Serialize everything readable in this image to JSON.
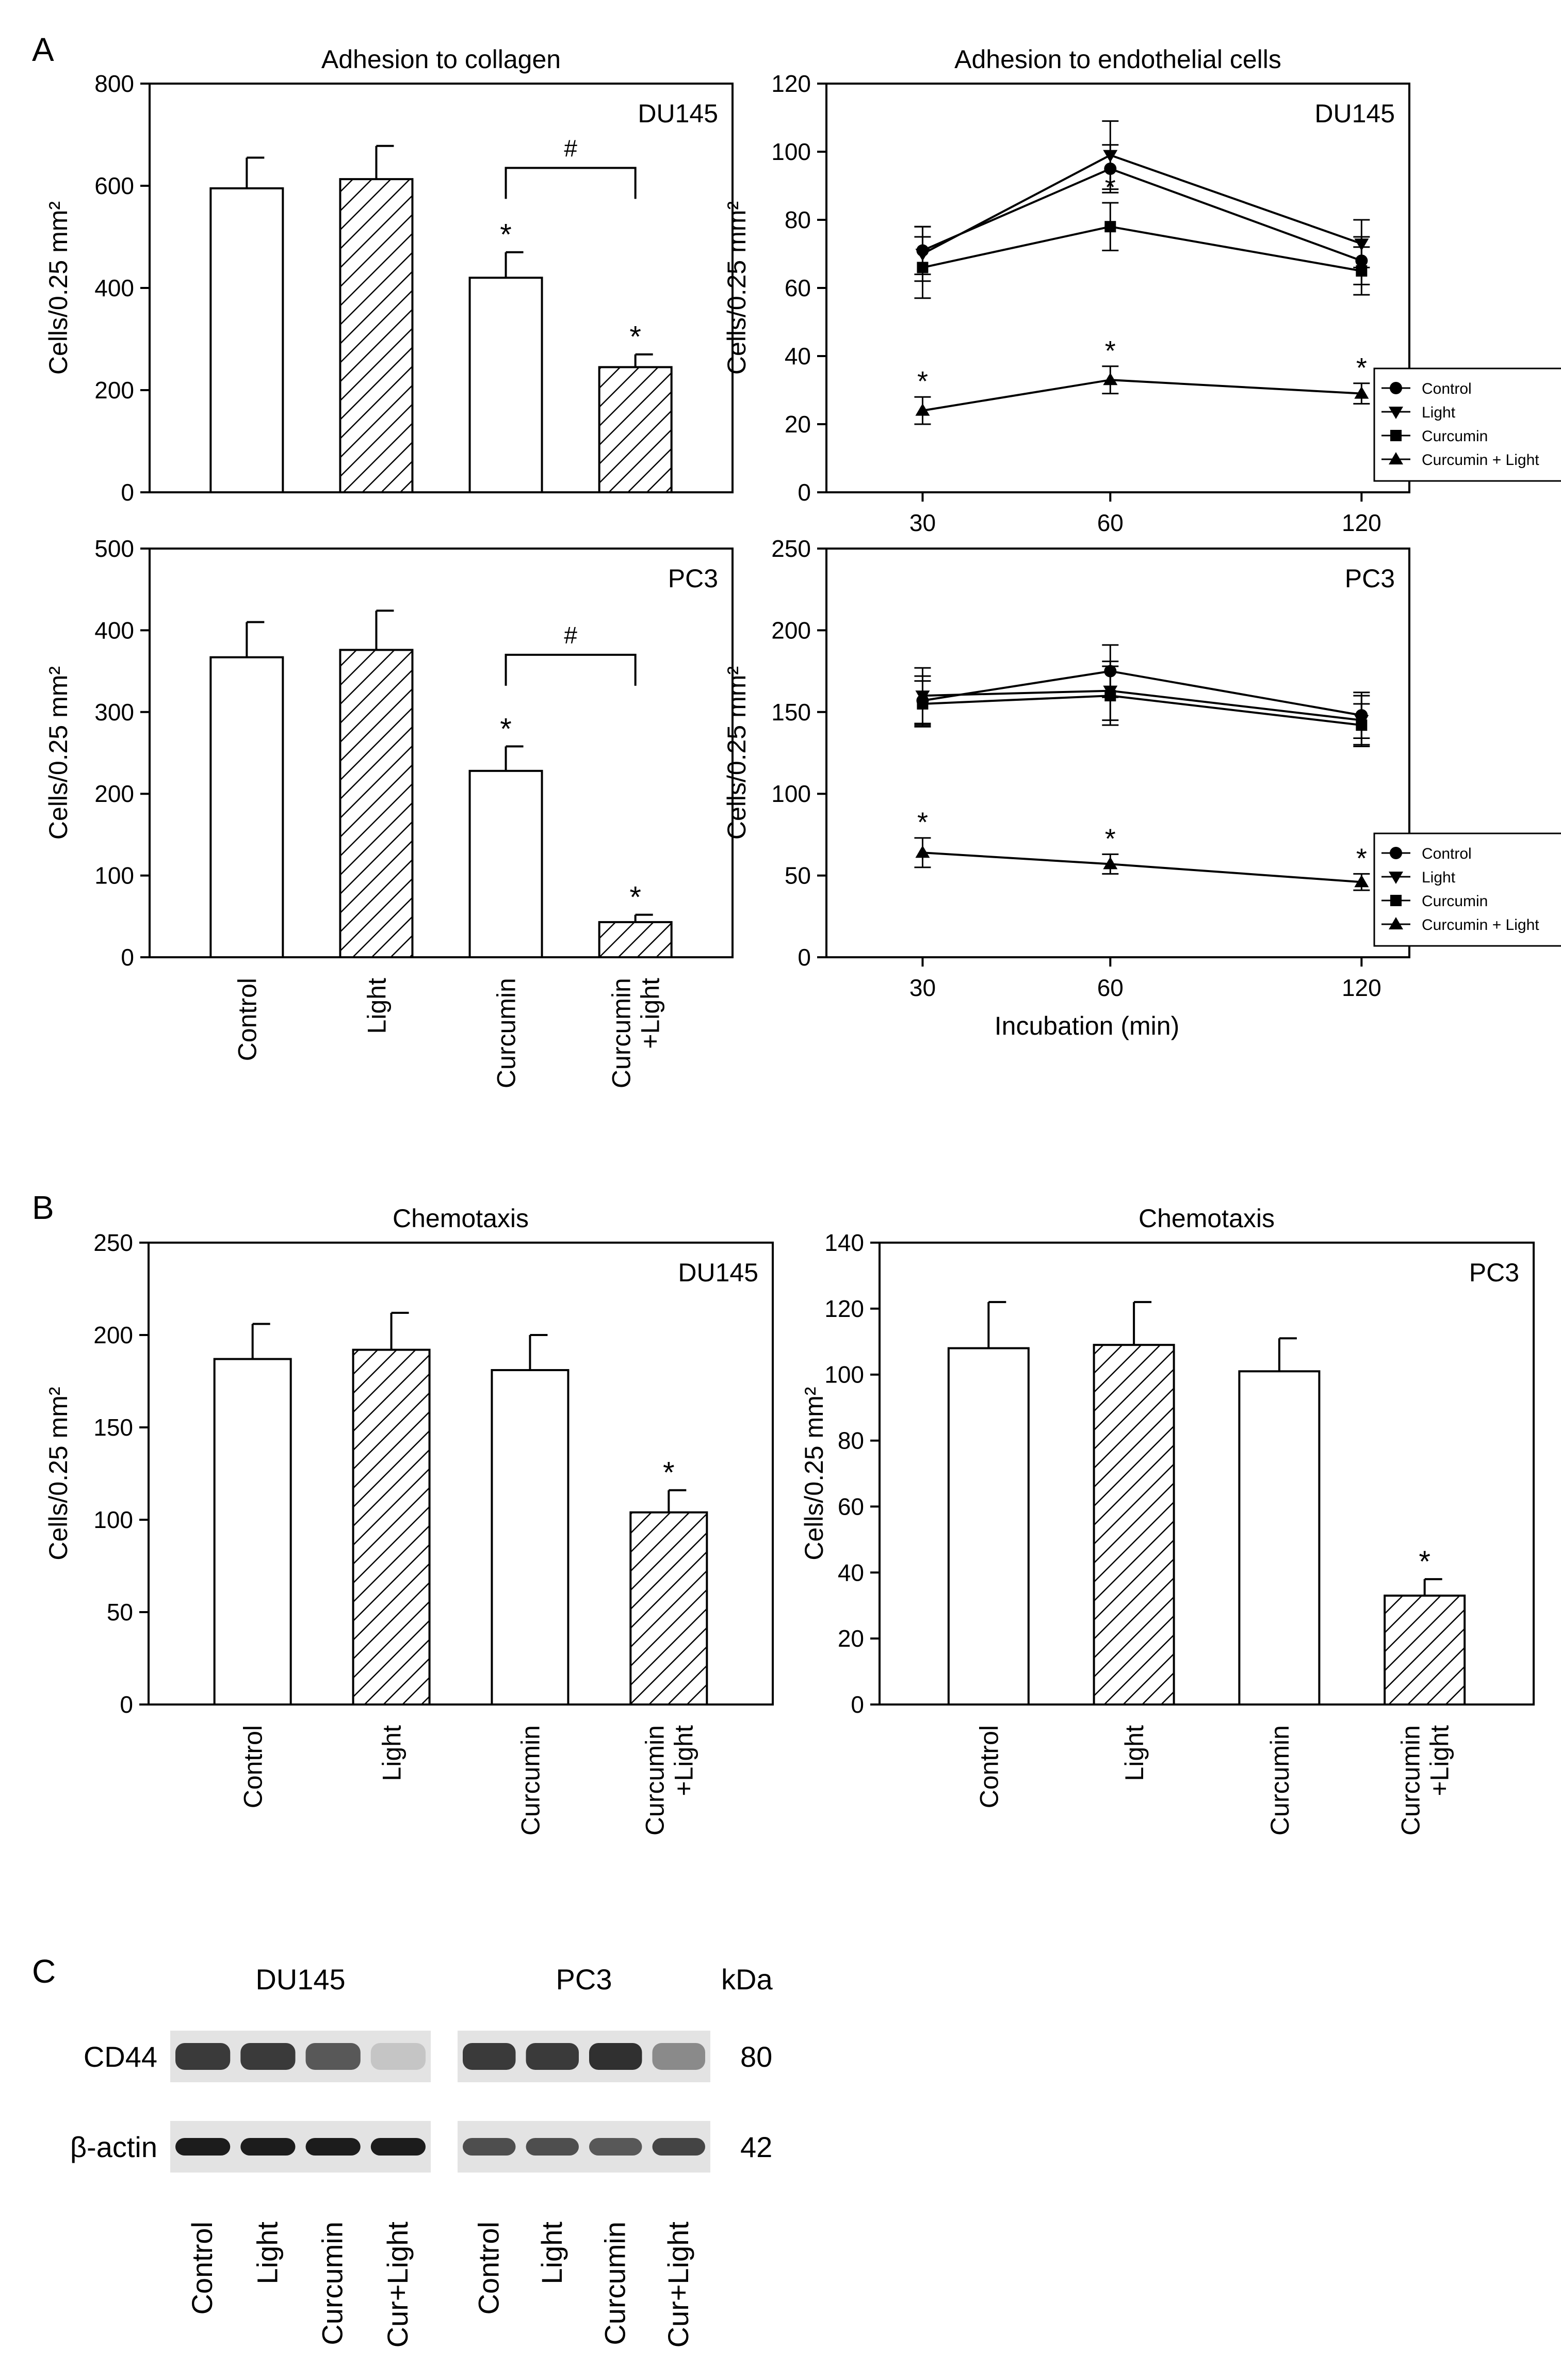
{
  "panel_letters": {
    "a": "A",
    "b": "B",
    "c": "C"
  },
  "patterns": {
    "bar_fill": "#ffffff",
    "stroke": "#000000",
    "hatch": "#000000"
  },
  "chart_data": [
    {
      "id": "a1",
      "type": "bar",
      "title": "Adhesion to collagen",
      "cell_line": "DU145",
      "ylabel": "Cells/0.25 mm²",
      "ylim": [
        0,
        800
      ],
      "yticks": [
        "0",
        "200",
        "400",
        "600",
        "800"
      ],
      "categories": [
        "Control",
        "Light",
        "Curcumin",
        "Curcumin\n+Light"
      ],
      "values": [
        595,
        613,
        420,
        245
      ],
      "errors": [
        60,
        65,
        50,
        25
      ],
      "hatched": [
        false,
        true,
        false,
        true
      ],
      "stars": [
        "",
        "",
        "*",
        "*"
      ],
      "bracket": {
        "from": 2,
        "to": 3,
        "label": "#",
        "y": 635
      },
      "show_xlabels": false
    },
    {
      "id": "a2",
      "type": "line",
      "title": "Adhesion to endothelial cells",
      "cell_line": "DU145",
      "ylabel": "Cells/0.25 mm²",
      "ylim": [
        0,
        120
      ],
      "yticks": [
        "0",
        "20",
        "40",
        "60",
        "80",
        "100",
        "120"
      ],
      "x": [
        30,
        60,
        120
      ],
      "xticks": [
        "30",
        "60",
        "120"
      ],
      "xlabel": "",
      "series": [
        {
          "name": "Control",
          "marker": "circle",
          "values": [
            71,
            95,
            68
          ],
          "errors": [
            7,
            7,
            7
          ],
          "stars": [
            "",
            "",
            ""
          ]
        },
        {
          "name": "Light",
          "marker": "triangle-down",
          "values": [
            70,
            99,
            73
          ],
          "errors": [
            8,
            10,
            7
          ],
          "stars": [
            "",
            "",
            ""
          ]
        },
        {
          "name": "Curcumin",
          "marker": "square",
          "values": [
            66,
            78,
            65
          ],
          "errors": [
            9,
            7,
            7
          ],
          "stars": [
            "",
            "*",
            ""
          ]
        },
        {
          "name": "Curcumin + Light",
          "marker": "triangle-up",
          "values": [
            24,
            33,
            29
          ],
          "errors": [
            4,
            4,
            3
          ],
          "stars": [
            "*",
            "*",
            "*"
          ]
        }
      ]
    },
    {
      "id": "a3",
      "type": "bar",
      "title": "",
      "cell_line": "PC3",
      "ylabel": "Cells/0.25 mm²",
      "ylim": [
        0,
        500
      ],
      "yticks": [
        "0",
        "100",
        "200",
        "300",
        "400",
        "500"
      ],
      "categories": [
        "Control",
        "Light",
        "Curcumin",
        "Curcumin\n+Light"
      ],
      "values": [
        367,
        376,
        228,
        43
      ],
      "errors": [
        43,
        48,
        30,
        9
      ],
      "hatched": [
        false,
        true,
        false,
        true
      ],
      "stars": [
        "",
        "",
        "*",
        "*"
      ],
      "bracket": {
        "from": 2,
        "to": 3,
        "label": "#",
        "y": 370
      },
      "show_xlabels": true
    },
    {
      "id": "a4",
      "type": "line",
      "title": "",
      "cell_line": "PC3",
      "ylabel": "Cells/0.25 mm²",
      "ylim": [
        0,
        250
      ],
      "yticks": [
        "0",
        "50",
        "100",
        "150",
        "200",
        "250"
      ],
      "x": [
        30,
        60,
        120
      ],
      "xticks": [
        "30",
        "60",
        "120"
      ],
      "xlabel": "Incubation (min)",
      "series": [
        {
          "name": "Control",
          "marker": "circle",
          "values": [
            157,
            175,
            148
          ],
          "errors": [
            15,
            16,
            14
          ],
          "stars": [
            "",
            "",
            ""
          ]
        },
        {
          "name": "Light",
          "marker": "triangle-down",
          "values": [
            160,
            163,
            145
          ],
          "errors": [
            17,
            18,
            15
          ],
          "stars": [
            "",
            "",
            ""
          ]
        },
        {
          "name": "Curcumin",
          "marker": "square",
          "values": [
            155,
            160,
            142
          ],
          "errors": [
            14,
            18,
            13
          ],
          "stars": [
            "",
            "",
            ""
          ]
        },
        {
          "name": "Curcumin + Light",
          "marker": "triangle-up",
          "values": [
            64,
            57,
            46
          ],
          "errors": [
            9,
            6,
            5
          ],
          "stars": [
            "*",
            "*",
            "*"
          ]
        }
      ]
    },
    {
      "id": "b1",
      "type": "bar",
      "title": "Chemotaxis",
      "cell_line": "DU145",
      "ylabel": "Cells/0.25 mm²",
      "ylim": [
        0,
        250
      ],
      "yticks": [
        "0",
        "50",
        "100",
        "150",
        "200",
        "250"
      ],
      "categories": [
        "Control",
        "Light",
        "Curcumin",
        "Curcumin\n+Light"
      ],
      "values": [
        187,
        192,
        181,
        104
      ],
      "errors": [
        19,
        20,
        19,
        12
      ],
      "hatched": [
        false,
        true,
        false,
        true
      ],
      "stars": [
        "",
        "",
        "",
        "*"
      ],
      "show_xlabels": true
    },
    {
      "id": "b2",
      "type": "bar",
      "title": "Chemotaxis",
      "cell_line": "PC3",
      "ylabel": "Cells/0.25 mm²",
      "ylim": [
        0,
        140
      ],
      "yticks": [
        "0",
        "20",
        "40",
        "60",
        "80",
        "100",
        "120",
        "140"
      ],
      "categories": [
        "Control",
        "Light",
        "Curcumin",
        "Curcumin\n+Light"
      ],
      "values": [
        108,
        109,
        101,
        33
      ],
      "errors": [
        14,
        13,
        10,
        5
      ],
      "hatched": [
        false,
        true,
        false,
        true
      ],
      "stars": [
        "",
        "",
        "",
        "*"
      ],
      "show_xlabels": true
    }
  ],
  "western_blot": {
    "groups": [
      "DU145",
      "PC3"
    ],
    "kda_label": "kDa",
    "rows": [
      {
        "protein": "CD44",
        "kda": "80",
        "intensities": [
          [
            0.85,
            0.85,
            0.7,
            0.15
          ],
          [
            0.85,
            0.85,
            0.9,
            0.45
          ]
        ]
      },
      {
        "protein": "β-actin",
        "kda": "42",
        "intensities": [
          [
            1.0,
            1.0,
            1.0,
            1.0
          ],
          [
            0.75,
            0.75,
            0.7,
            0.8
          ]
        ]
      }
    ],
    "lanes": [
      [
        "Control",
        "Light",
        "Curcumin",
        "Cur+Light"
      ],
      [
        "Control",
        "Light",
        "Curcumin",
        "Cur+Light"
      ]
    ]
  }
}
